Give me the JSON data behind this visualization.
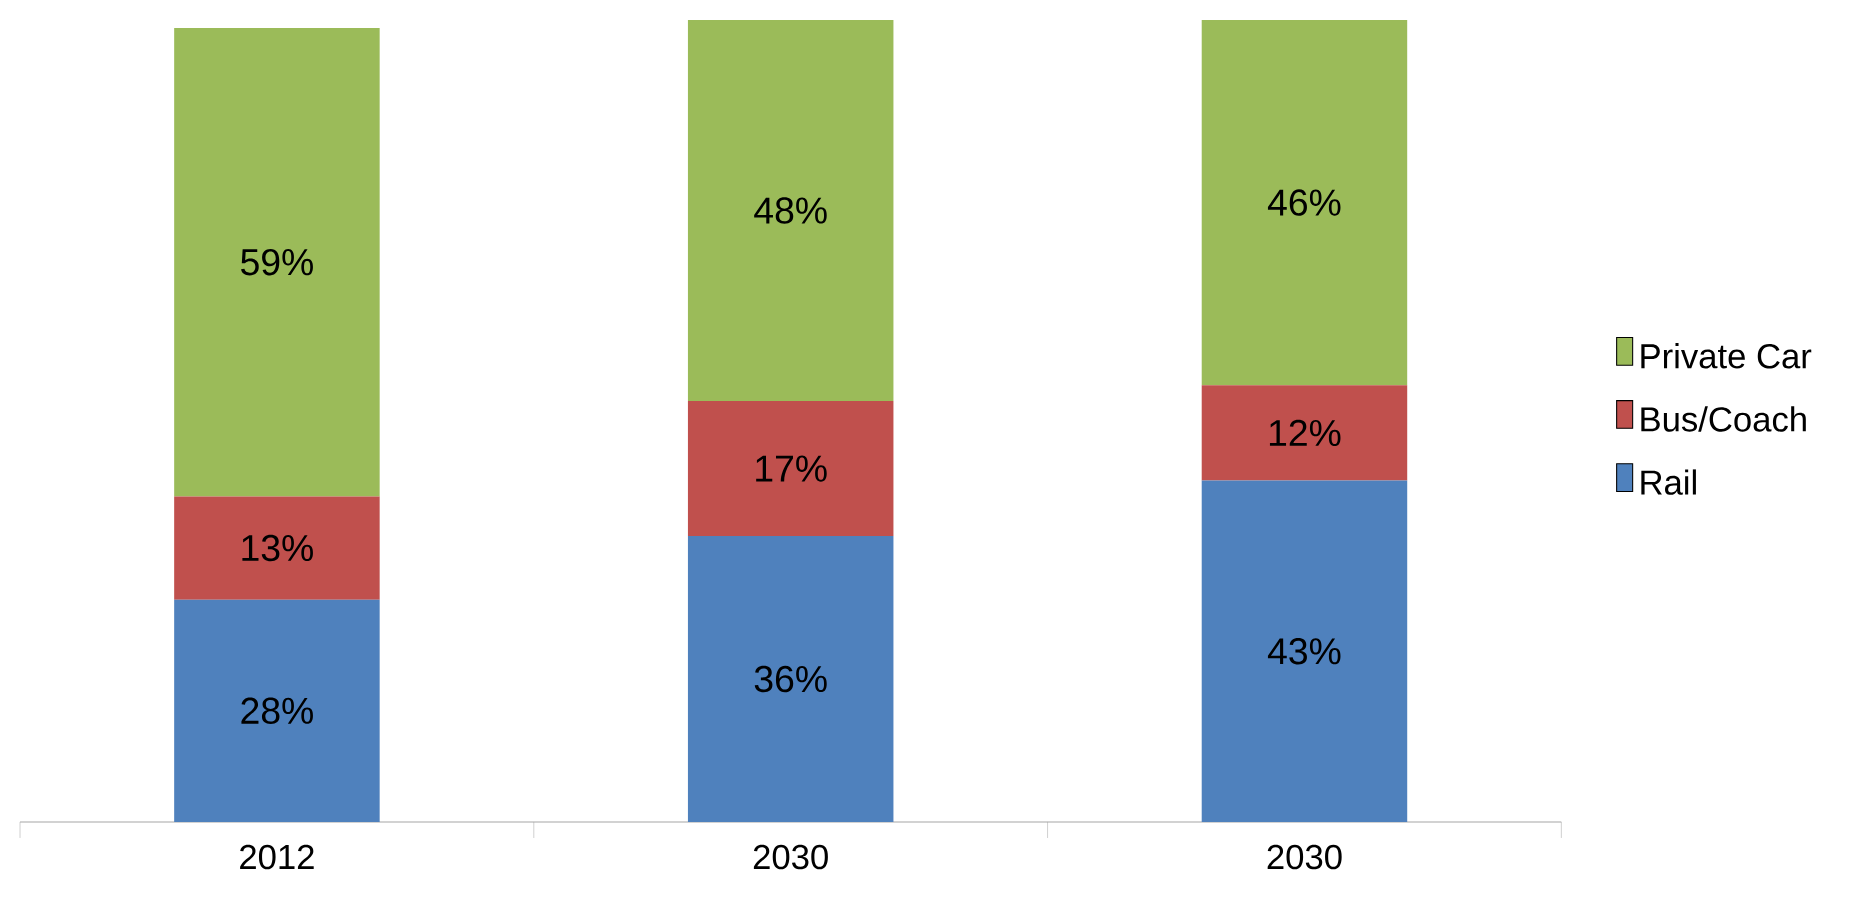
{
  "chart_data": {
    "type": "bar",
    "stacked": true,
    "categories": [
      "2012",
      "2030",
      "2030"
    ],
    "legend": "right",
    "series": [
      {
        "name": "Rail",
        "color": "#4f81bd",
        "values": [
          28,
          36,
          43
        ],
        "value_labels": [
          "28%",
          "36%",
          "43%"
        ]
      },
      {
        "name": "Bus/Coach",
        "color": "#c0504d",
        "values": [
          13,
          17,
          12
        ],
        "value_labels": [
          "13%",
          "17%",
          "12%"
        ]
      },
      {
        "name": "Private Car",
        "color": "#9bbb59",
        "values": [
          59,
          48,
          46
        ],
        "value_labels": [
          "59%",
          "48%",
          "46%"
        ]
      }
    ]
  }
}
